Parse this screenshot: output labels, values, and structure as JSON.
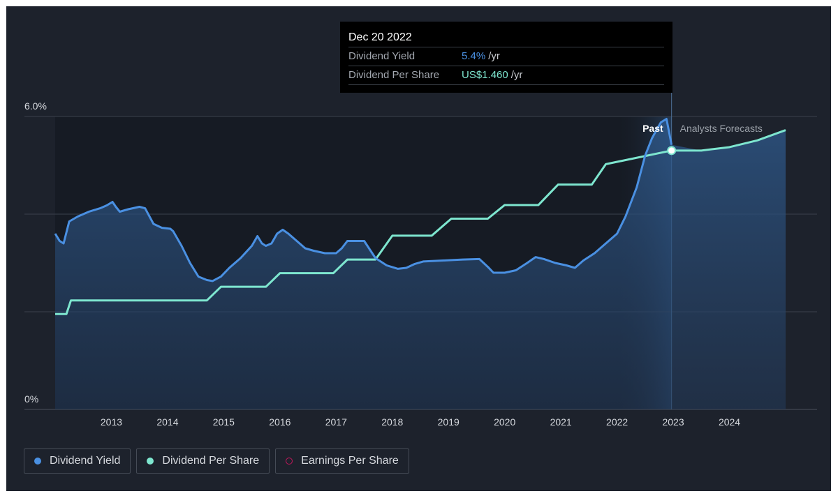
{
  "tooltip": {
    "date": "Dec 20 2022",
    "rows": [
      {
        "label": "Dividend Yield",
        "value": "5.4%",
        "unit": "/yr",
        "color": "#4a90e2"
      },
      {
        "label": "Dividend Per Share",
        "value": "US$1.460",
        "unit": "/yr",
        "color": "#7ee6cf"
      }
    ]
  },
  "legend": [
    {
      "label": "Dividend Yield",
      "color": "#4a90e2",
      "style": "filled"
    },
    {
      "label": "Dividend Per Share",
      "color": "#7ee6cf",
      "style": "filled"
    },
    {
      "label": "Earnings Per Share",
      "color": "#c2185b",
      "style": "outline"
    }
  ],
  "chart_data": {
    "type": "line",
    "y_tick_labels": [
      "6.0%",
      "0%"
    ],
    "ylim": [
      0,
      6.0
    ],
    "xlim": [
      2012.0,
      2025.0
    ],
    "x_ticks": [
      2013,
      2014,
      2015,
      2016,
      2017,
      2018,
      2019,
      2020,
      2021,
      2022,
      2023,
      2024
    ],
    "grid": true,
    "regions": {
      "past_label": "Past",
      "forecast_label": "Analysts Forecasts",
      "forecast_start": 2022.0,
      "current": 2022.97
    },
    "series": [
      {
        "name": "Dividend Yield",
        "color": "#4a90e2",
        "x": [
          2012.0,
          2012.08,
          2012.15,
          2012.25,
          2012.4,
          2012.6,
          2012.8,
          2012.92,
          2013.02,
          2013.08,
          2013.15,
          2013.3,
          2013.5,
          2013.6,
          2013.75,
          2013.9,
          2014.05,
          2014.1,
          2014.25,
          2014.4,
          2014.55,
          2014.7,
          2014.8,
          2014.95,
          2015.1,
          2015.3,
          2015.5,
          2015.6,
          2015.68,
          2015.75,
          2015.85,
          2015.95,
          2016.05,
          2016.15,
          2016.3,
          2016.45,
          2016.6,
          2016.8,
          2017.0,
          2017.1,
          2017.2,
          2017.5,
          2017.7,
          2017.9,
          2018.1,
          2018.25,
          2018.4,
          2018.55,
          2018.9,
          2019.25,
          2019.55,
          2019.7,
          2019.8,
          2020.0,
          2020.2,
          2020.4,
          2020.55,
          2020.7,
          2020.9,
          2021.1,
          2021.25,
          2021.4,
          2021.6,
          2021.8,
          2022.0,
          2022.15,
          2022.35,
          2022.5,
          2022.62,
          2022.7,
          2022.78,
          2022.88,
          2022.97
        ],
        "y": [
          3.6,
          3.45,
          3.4,
          3.85,
          3.95,
          4.05,
          4.12,
          4.18,
          4.25,
          4.15,
          4.05,
          4.1,
          4.15,
          4.12,
          3.8,
          3.72,
          3.7,
          3.65,
          3.35,
          3.0,
          2.72,
          2.65,
          2.63,
          2.72,
          2.9,
          3.1,
          3.35,
          3.55,
          3.4,
          3.35,
          3.4,
          3.6,
          3.68,
          3.6,
          3.45,
          3.3,
          3.25,
          3.2,
          3.2,
          3.3,
          3.45,
          3.45,
          3.1,
          2.95,
          2.88,
          2.9,
          2.98,
          3.03,
          3.05,
          3.07,
          3.08,
          2.92,
          2.8,
          2.8,
          2.85,
          3.0,
          3.12,
          3.08,
          3.0,
          2.95,
          2.9,
          3.05,
          3.2,
          3.4,
          3.6,
          3.95,
          4.55,
          5.2,
          5.55,
          5.72,
          5.88,
          5.95,
          5.42
        ]
      },
      {
        "name": "Dividend Per Share",
        "color": "#7ee6cf",
        "x": [
          2012.0,
          2012.2,
          2012.28,
          2014.7,
          2014.95,
          2015.75,
          2016.0,
          2016.95,
          2017.2,
          2017.7,
          2018.0,
          2018.7,
          2019.05,
          2019.7,
          2020.0,
          2020.6,
          2020.95,
          2021.55,
          2021.8,
          2022.97,
          2023.5,
          2024.0,
          2024.5,
          2025.0
        ],
        "y": [
          0.98,
          0.98,
          1.02,
          1.02,
          1.06,
          1.06,
          1.1,
          1.1,
          1.14,
          1.14,
          1.21,
          1.21,
          1.26,
          1.26,
          1.3,
          1.3,
          1.36,
          1.36,
          1.42,
          1.46,
          1.46,
          1.47,
          1.49,
          1.52
        ]
      }
    ]
  }
}
